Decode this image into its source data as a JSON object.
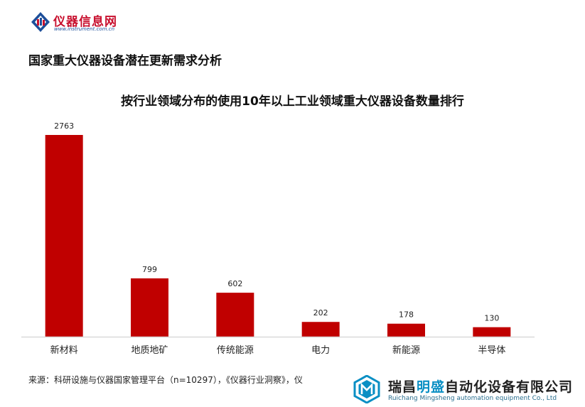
{
  "logo": {
    "name": "仪器信息网",
    "url": "www.instrument.com.cn"
  },
  "page_title": "国家重大仪器设备潜在更新需求分析",
  "chart_data": {
    "type": "bar",
    "title": "按行业领域分布的使用10年以上工业领域重大仪器设备数量排行",
    "categories": [
      "新材料",
      "地质地矿",
      "传统能源",
      "电力",
      "新能源",
      "半导体"
    ],
    "values": [
      2763,
      799,
      602,
      202,
      178,
      130
    ],
    "data_labels": [
      "2763",
      "799",
      "602",
      "202",
      "178",
      "130"
    ],
    "ylim": [
      0,
      2763
    ],
    "grid": false,
    "legend": "none",
    "bar_color": "#c00000",
    "axis_color": "#d9d9d9"
  },
  "source": "来源：科研设施与仪器国家管理平台（n=10297），《仪器行业洞察》，仪",
  "watermark": {
    "title_part1": "瑞昌",
    "title_highlight": "明盛",
    "title_part2": "自动化设备有限公司",
    "subtitle": "Ruichang Mingsheng automation equipment Co., Ltd",
    "accent_color": "#0a8fc4"
  }
}
